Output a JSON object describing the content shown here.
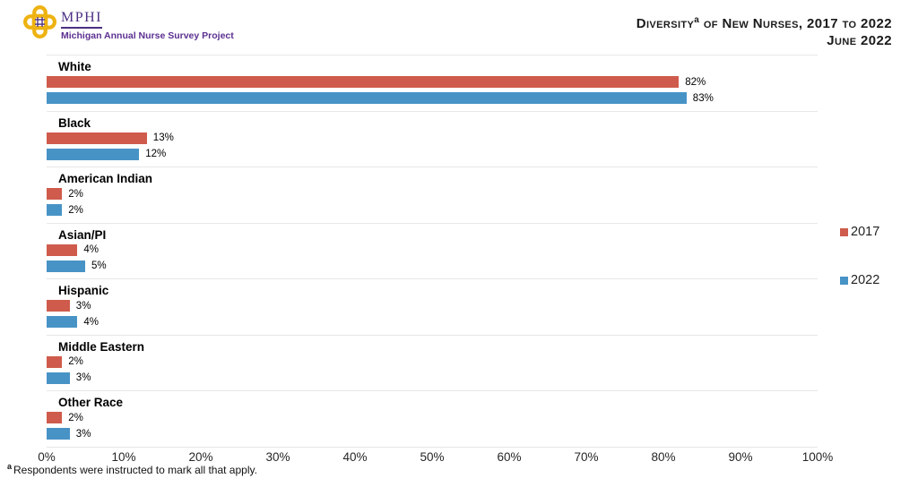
{
  "header": {
    "logo_org": "MPHI",
    "logo_subtitle": "Michigan Annual Nurse Survey Project",
    "title_main": "Diversity",
    "title_superscript": "a",
    "title_rest": " of New Nurses, 2017 to 2022",
    "title_date": "June 2022"
  },
  "chart_data": {
    "type": "bar",
    "orientation": "horizontal",
    "title": "Diversity of New Nurses, 2017 to 2022",
    "categories": [
      "White",
      "Black",
      "American Indian",
      "Asian/PI",
      "Hispanic",
      "Middle Eastern",
      "Other Race"
    ],
    "series": [
      {
        "name": "2017",
        "color": "#cf5b4c",
        "values": [
          82,
          13,
          2,
          4,
          3,
          2,
          2
        ]
      },
      {
        "name": "2022",
        "color": "#4793c6",
        "values": [
          83,
          12,
          2,
          5,
          4,
          3,
          3
        ]
      }
    ],
    "value_suffix": "%",
    "xlim": [
      0,
      100
    ],
    "x_ticks": [
      "0%",
      "10%",
      "20%",
      "30%",
      "40%",
      "50%",
      "60%",
      "70%",
      "80%",
      "90%",
      "100%"
    ],
    "legend_position": "right",
    "grid": "row-separators",
    "separator_color": "#e7e7e7"
  },
  "footnote": {
    "superscript": "a",
    "text": "Respondents were instructed to mark all that apply."
  }
}
